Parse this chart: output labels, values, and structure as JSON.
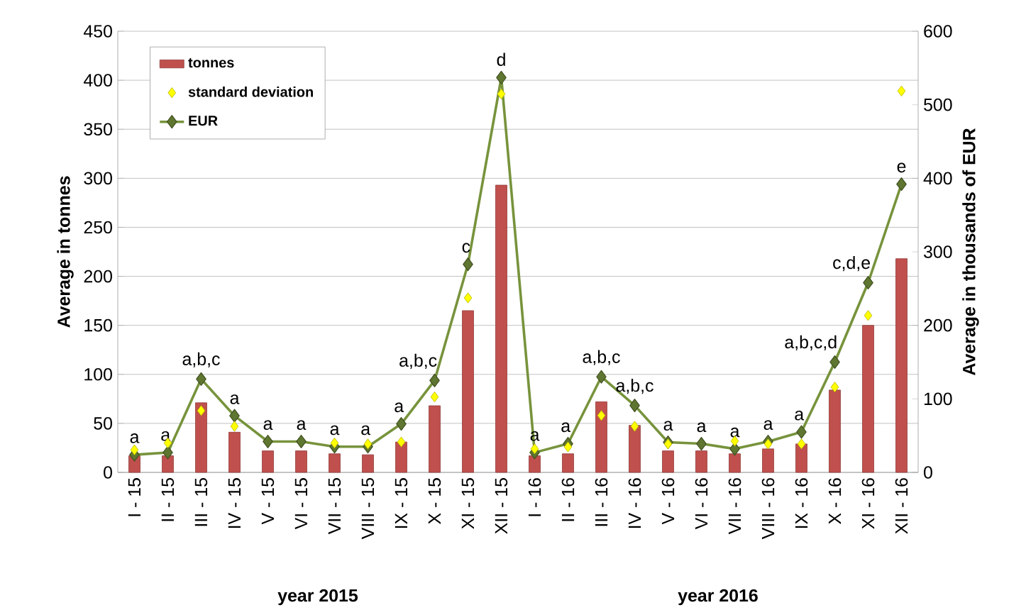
{
  "chart_data": {
    "type": "bar",
    "categories": [
      "I - 15",
      "II - 15",
      "III - 15",
      "IV - 15",
      "V - 15",
      "VI - 15",
      "VII - 15",
      "VIII - 15",
      "IX - 15",
      "X - 15",
      "XI - 15",
      "XII - 15",
      "I - 16",
      "II - 16",
      "III - 16",
      "IV - 16",
      "V - 16",
      "VI - 16",
      "VII - 16",
      "VIII - 16",
      "IX - 16",
      "X - 16",
      "XI - 16",
      "XII - 16"
    ],
    "series": [
      {
        "name": "tonnes",
        "type": "bar",
        "color": "#c0504d",
        "values": [
          17,
          17,
          71,
          41,
          22,
          22,
          19,
          18,
          31,
          68,
          165,
          293,
          17,
          19,
          72,
          48,
          22,
          22,
          19,
          24,
          29,
          84,
          150,
          218
        ]
      },
      {
        "name": "standard deviation",
        "type": "scatter",
        "marker": "diamond",
        "color": "#ffff00",
        "values": [
          23,
          30,
          63,
          47,
          null,
          null,
          30,
          29,
          31,
          77,
          178,
          386,
          24,
          26,
          58,
          47,
          29,
          null,
          32,
          29,
          29,
          87,
          160,
          389
        ]
      },
      {
        "name": "EUR",
        "type": "line",
        "axis": "y2",
        "marker": "diamond",
        "color": "#77933c",
        "values": [
          24,
          27,
          127,
          77,
          42,
          42,
          35,
          35,
          66,
          125,
          283,
          537,
          27,
          39,
          130,
          91,
          41,
          39,
          32,
          42,
          55,
          150,
          258,
          392
        ]
      }
    ],
    "ylabel": "Average in tonnes",
    "y2label": "Average in thousands of EUR",
    "ylim": [
      0,
      450
    ],
    "yticks": [
      0,
      50,
      100,
      150,
      200,
      250,
      300,
      350,
      400,
      450
    ],
    "y2lim": [
      0,
      600
    ],
    "y2ticks": [
      0,
      100,
      200,
      300,
      400,
      500,
      600
    ],
    "grid": "y",
    "legend": "top left",
    "annotations": [
      "a",
      "a",
      "a,b,c",
      "a",
      "a",
      "a",
      "a",
      "a",
      "a",
      "a,b,c",
      "c",
      "d",
      "a",
      "a",
      "a,b,c",
      "a,b,c",
      "a",
      "a",
      "a",
      "a",
      "a",
      "a,b,c,d",
      "c,d,e",
      "e",
      "year 2015",
      "year 2016"
    ]
  }
}
